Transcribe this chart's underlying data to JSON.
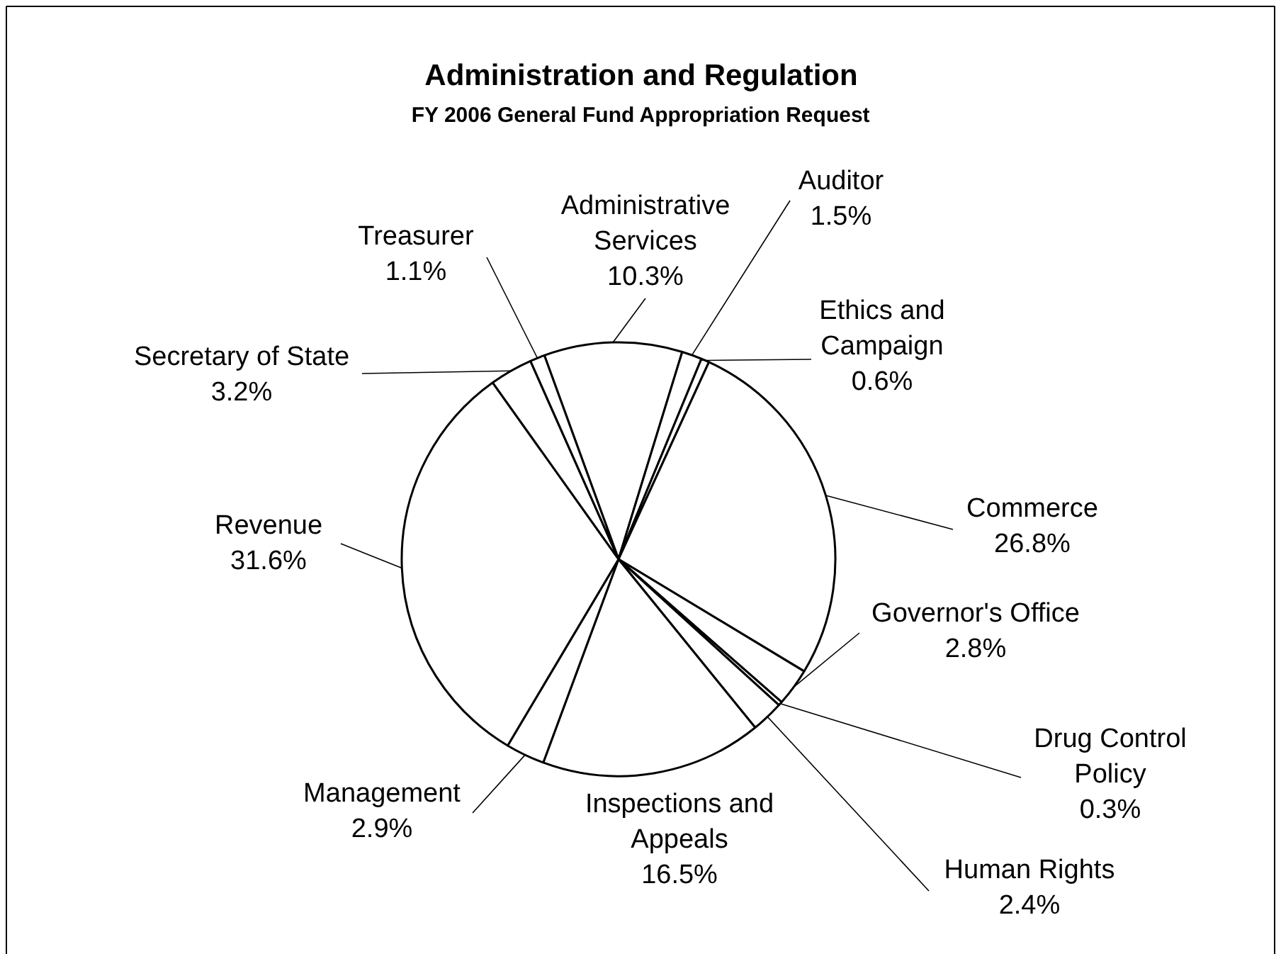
{
  "chart_data": {
    "type": "pie",
    "title": "Administration and Regulation",
    "subtitle": "FY 2006 General Fund Appropriation Request",
    "categories": [
      "Administrative Services",
      "Auditor",
      "Ethics and Campaign",
      "Commerce",
      "Governor's Office",
      "Drug Control Policy",
      "Human Rights",
      "Inspections and Appeals",
      "Management",
      "Revenue",
      "Secretary of State",
      "Treasurer"
    ],
    "values": [
      10.3,
      1.5,
      0.6,
      26.8,
      2.8,
      0.3,
      2.4,
      16.5,
      2.9,
      31.6,
      3.2,
      1.1
    ],
    "value_labels": [
      "10.3%",
      "1.5%",
      "0.6%",
      "26.8%",
      "2.8%",
      "0.3%",
      "2.4%",
      "16.5%",
      "2.9%",
      "31.6%",
      "3.2%",
      "1.1%"
    ],
    "colors": [
      "#ffffff",
      "#ffffff",
      "#ffffff",
      "#ffffff",
      "#ffffff",
      "#ffffff",
      "#ffffff",
      "#ffffff",
      "#ffffff",
      "#ffffff",
      "#ffffff",
      "#ffffff"
    ]
  }
}
